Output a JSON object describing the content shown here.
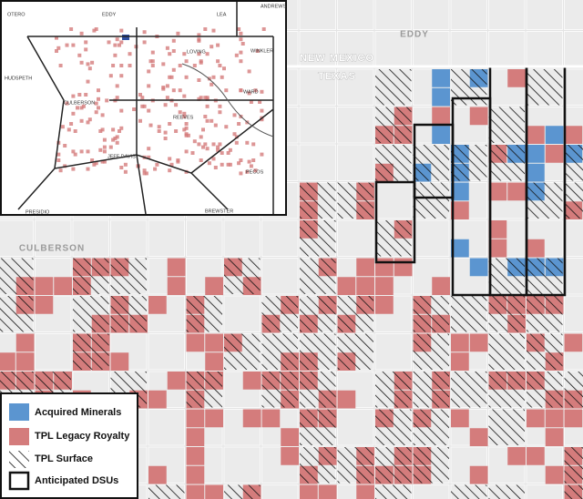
{
  "map": {
    "county_labels": [
      "EDDY",
      "CULBERSON"
    ],
    "state_labels": [
      "NEW MEXICO",
      "TEXAS"
    ]
  },
  "inset": {
    "county_labels": [
      "OTERO",
      "EDDY",
      "LEA",
      "ANDREWS",
      "WINKLER",
      "LOVING",
      "WARD",
      "HUDSPETH",
      "CULBERSON",
      "REEVES",
      "PECOS",
      "JEFF DAVIS",
      "PRESIDIO",
      "BREWSTER"
    ]
  },
  "legend": {
    "items": [
      "Acquired Minerals",
      "TPL Legacy Royalty",
      "TPL Surface",
      "Anticipated DSUs"
    ]
  }
}
